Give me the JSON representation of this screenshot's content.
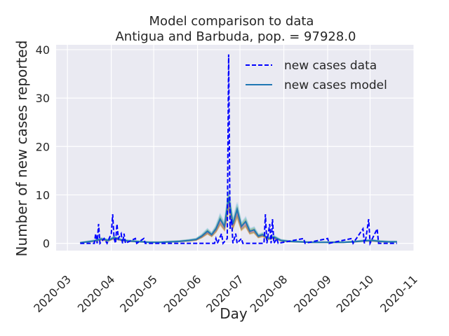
{
  "chart_data": {
    "type": "line",
    "title": "Model comparison to data",
    "subtitle": "Antigua and Barbuda, pop. = 97928.0",
    "xlabel": "Day",
    "ylabel": "Number of new cases reported",
    "x_axis_type": "date",
    "xlim": [
      "2020-02-22",
      "2020-11-01"
    ],
    "ylim": [
      -1.5,
      41
    ],
    "x_ticks": [
      "2020-03",
      "2020-04",
      "2020-05",
      "2020-06",
      "2020-07",
      "2020-08",
      "2020-09",
      "2020-10",
      "2020-11"
    ],
    "x_tick_dates": [
      "2020-03-01",
      "2020-04-01",
      "2020-05-01",
      "2020-06-01",
      "2020-07-01",
      "2020-08-01",
      "2020-09-01",
      "2020-10-01",
      "2020-11-01"
    ],
    "y_ticks": [
      0,
      10,
      20,
      30,
      40
    ],
    "grid": true,
    "legend_position": "top-right",
    "background": "#eaeaf2",
    "series": [
      {
        "name": "new cases data",
        "style": "dashed",
        "color": "#0000ff",
        "points": [
          [
            "2020-03-10",
            0
          ],
          [
            "2020-03-20",
            0
          ],
          [
            "2020-03-21",
            2
          ],
          [
            "2020-03-22",
            0
          ],
          [
            "2020-03-23",
            4
          ],
          [
            "2020-03-24",
            0
          ],
          [
            "2020-03-27",
            1
          ],
          [
            "2020-03-29",
            0
          ],
          [
            "2020-04-01",
            2
          ],
          [
            "2020-04-02",
            6
          ],
          [
            "2020-04-03",
            1
          ],
          [
            "2020-04-04",
            0
          ],
          [
            "2020-04-05",
            4
          ],
          [
            "2020-04-06",
            1
          ],
          [
            "2020-04-08",
            2
          ],
          [
            "2020-04-09",
            0
          ],
          [
            "2020-04-10",
            2
          ],
          [
            "2020-04-11",
            0
          ],
          [
            "2020-04-18",
            1
          ],
          [
            "2020-04-19",
            0
          ],
          [
            "2020-04-24",
            1
          ],
          [
            "2020-04-25",
            0
          ],
          [
            "2020-06-13",
            0
          ],
          [
            "2020-06-14",
            1
          ],
          [
            "2020-06-15",
            0
          ],
          [
            "2020-06-18",
            2
          ],
          [
            "2020-06-19",
            0
          ],
          [
            "2020-06-22",
            1
          ],
          [
            "2020-06-23",
            39
          ],
          [
            "2020-06-24",
            3
          ],
          [
            "2020-06-25",
            5
          ],
          [
            "2020-06-26",
            0
          ],
          [
            "2020-06-28",
            2
          ],
          [
            "2020-06-29",
            0
          ],
          [
            "2020-07-02",
            1
          ],
          [
            "2020-07-03",
            0
          ],
          [
            "2020-07-18",
            0
          ],
          [
            "2020-07-19",
            6
          ],
          [
            "2020-07-20",
            0
          ],
          [
            "2020-07-22",
            4
          ],
          [
            "2020-07-23",
            0
          ],
          [
            "2020-07-24",
            5
          ],
          [
            "2020-07-25",
            0
          ],
          [
            "2020-07-27",
            1
          ],
          [
            "2020-07-28",
            0
          ],
          [
            "2020-08-15",
            1
          ],
          [
            "2020-08-16",
            0
          ],
          [
            "2020-09-01",
            1
          ],
          [
            "2020-09-02",
            0
          ],
          [
            "2020-09-18",
            1
          ],
          [
            "2020-09-19",
            0
          ],
          [
            "2020-09-26",
            3
          ],
          [
            "2020-09-27",
            0
          ],
          [
            "2020-09-28",
            1
          ],
          [
            "2020-09-30",
            5
          ],
          [
            "2020-10-01",
            0
          ],
          [
            "2020-10-06",
            3
          ],
          [
            "2020-10-07",
            0
          ],
          [
            "2020-10-20",
            0
          ]
        ]
      },
      {
        "name": "new cases model",
        "style": "solid",
        "color": "#1f77b4",
        "points": [
          [
            "2020-03-10",
            0.1
          ],
          [
            "2020-03-15",
            0.3
          ],
          [
            "2020-03-20",
            0.5
          ],
          [
            "2020-03-25",
            0.9
          ],
          [
            "2020-03-30",
            0.6
          ],
          [
            "2020-04-03",
            1.2
          ],
          [
            "2020-04-08",
            0.7
          ],
          [
            "2020-04-13",
            0.5
          ],
          [
            "2020-04-18",
            0.4
          ],
          [
            "2020-04-23",
            0.3
          ],
          [
            "2020-04-28",
            0.2
          ],
          [
            "2020-05-05",
            0.2
          ],
          [
            "2020-05-12",
            0.3
          ],
          [
            "2020-05-19",
            0.4
          ],
          [
            "2020-05-26",
            0.6
          ],
          [
            "2020-05-31",
            0.8
          ],
          [
            "2020-06-04",
            1.5
          ],
          [
            "2020-06-08",
            2.5
          ],
          [
            "2020-06-11",
            1.8
          ],
          [
            "2020-06-14",
            3.0
          ],
          [
            "2020-06-17",
            5.0
          ],
          [
            "2020-06-20",
            3.5
          ],
          [
            "2020-06-23",
            9.5
          ],
          [
            "2020-06-26",
            4.0
          ],
          [
            "2020-06-29",
            7.0
          ],
          [
            "2020-07-02",
            3.5
          ],
          [
            "2020-07-05",
            4.5
          ],
          [
            "2020-07-08",
            2.5
          ],
          [
            "2020-07-11",
            2.8
          ],
          [
            "2020-07-14",
            1.5
          ],
          [
            "2020-07-17",
            1.8
          ],
          [
            "2020-07-21",
            1.0
          ],
          [
            "2020-07-25",
            1.3
          ],
          [
            "2020-07-30",
            0.6
          ],
          [
            "2020-08-05",
            0.4
          ],
          [
            "2020-08-12",
            0.3
          ],
          [
            "2020-08-20",
            0.2
          ],
          [
            "2020-08-28",
            0.2
          ],
          [
            "2020-09-05",
            0.2
          ],
          [
            "2020-09-12",
            0.2
          ],
          [
            "2020-09-19",
            0.3
          ],
          [
            "2020-09-26",
            0.5
          ],
          [
            "2020-10-02",
            0.6
          ],
          [
            "2020-10-08",
            0.4
          ],
          [
            "2020-10-14",
            0.3
          ],
          [
            "2020-10-20",
            0.3
          ]
        ]
      }
    ],
    "ensemble_colors": [
      "#ff7f0e",
      "#2ca02c",
      "#d62728",
      "#9467bd",
      "#8c564b",
      "#e377c2",
      "#7f7f7f",
      "#bcbd22",
      "#17becf",
      "#aec7e8"
    ]
  }
}
